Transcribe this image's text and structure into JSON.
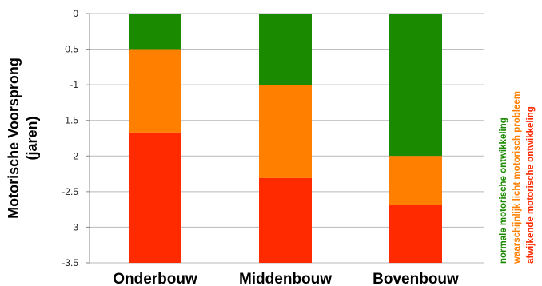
{
  "chart_data": {
    "type": "bar",
    "stacked": true,
    "categories": [
      "Onderbouw",
      "Middenbouw",
      "Bovenbouw"
    ],
    "series": [
      {
        "name": "normale motorische ontwikkeling",
        "color": "#1a8a00",
        "values": [
          [
            0,
            -0.5
          ],
          [
            0,
            -1.0
          ],
          [
            0,
            -2.0
          ]
        ]
      },
      {
        "name": "waarschijnlijk licht motorisch probleem",
        "color": "#ff8000",
        "values": [
          [
            -0.5,
            -1.67
          ],
          [
            -1.0,
            -2.31
          ],
          [
            -2.0,
            -2.69
          ]
        ]
      },
      {
        "name": "afwijkende motorische ontwikkeling",
        "color": "#ff2a00",
        "values": [
          [
            -1.67,
            -3.5
          ],
          [
            -2.31,
            -3.5
          ],
          [
            -2.69,
            -3.5
          ]
        ]
      }
    ],
    "ylabel_lines": [
      "Motorische Voorsprong",
      "(jaren)"
    ],
    "xlabel": "",
    "ylim": [
      -3.5,
      0
    ],
    "yticks": [
      "0",
      "-0.5",
      "-1",
      "-1.5",
      "-2",
      "-2.5",
      "-3",
      "-3.5"
    ],
    "ytick_values": [
      0,
      -0.5,
      -1,
      -1.5,
      -2,
      -2.5,
      -3,
      -3.5
    ],
    "grid": true,
    "legend_position": "right, vertical"
  }
}
